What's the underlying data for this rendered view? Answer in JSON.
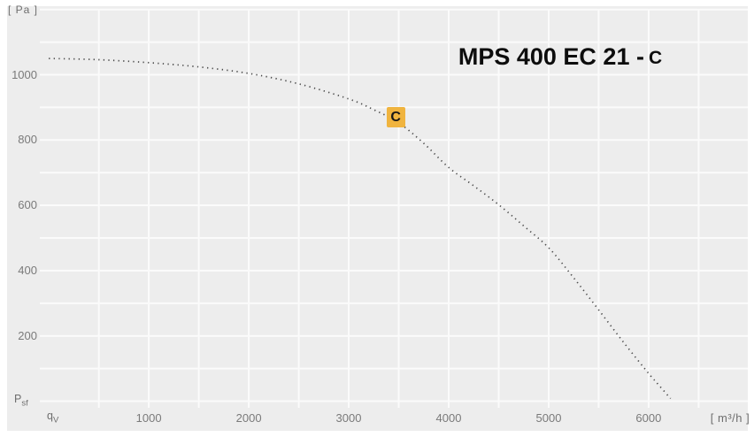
{
  "title": {
    "main": "MPS 400 EC 21 -",
    "suffix": "C"
  },
  "units": {
    "y": "[ Pa ]",
    "x": "[ m³/h ]"
  },
  "axis_symbols": {
    "y": {
      "base": "P",
      "sub": "sf"
    },
    "x": {
      "base": "q",
      "sub": "V"
    }
  },
  "colors": {
    "panel_bg": "#ededed",
    "grid": "#fbfbfb",
    "curve": "#4a4a4a",
    "tick_text": "#7a7a7a",
    "label_text": "#6e6e6e",
    "title_text": "#0d0d0d",
    "badge_bg": "#f0b43f",
    "badge_text": "#161616"
  },
  "chart_data": {
    "type": "line",
    "line_style": "dotted",
    "title": "MPS 400 EC 21 - C",
    "xlabel": "qV [m³/h]",
    "ylabel": "Psf [Pa]",
    "xlim": [
      0,
      6550
    ],
    "ylim": [
      0,
      1200
    ],
    "grid": true,
    "x_grid_step": 500,
    "y_grid_step": 100,
    "x_ticks": [
      1000,
      2000,
      3000,
      4000,
      5000,
      6000
    ],
    "y_ticks": [
      1000,
      800,
      600,
      400,
      200
    ],
    "series": [
      {
        "name": "MPS 400 EC 21 - C",
        "points": [
          [
            0,
            1050
          ],
          [
            500,
            1046
          ],
          [
            1000,
            1037
          ],
          [
            1500,
            1024
          ],
          [
            2000,
            1004
          ],
          [
            2500,
            972
          ],
          [
            3000,
            926
          ],
          [
            3250,
            893
          ],
          [
            3500,
            853
          ],
          [
            3750,
            790
          ],
          [
            4000,
            716
          ],
          [
            4250,
            660
          ],
          [
            4500,
            602
          ],
          [
            4750,
            537
          ],
          [
            5000,
            470
          ],
          [
            5250,
            378
          ],
          [
            5500,
            280
          ],
          [
            5750,
            180
          ],
          [
            6000,
            85
          ],
          [
            6100,
            50
          ],
          [
            6220,
            8
          ]
        ]
      }
    ],
    "operating_point": {
      "label": "C",
      "x": 3470,
      "y": 870
    }
  }
}
